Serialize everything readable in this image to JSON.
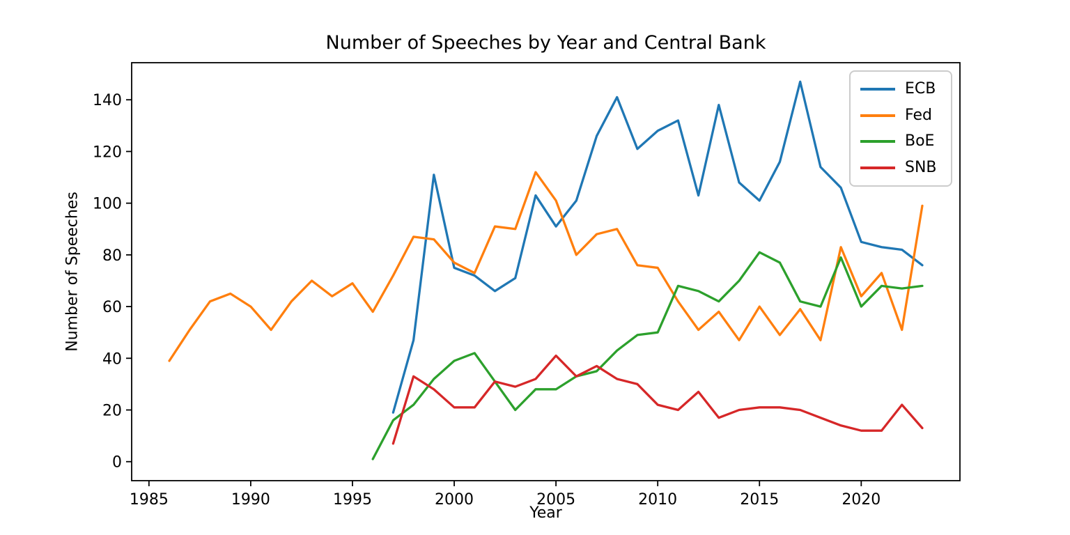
{
  "chart_data": {
    "type": "line",
    "title": "Number of Speeches by Year and Central Bank",
    "xlabel": "Year",
    "ylabel": "Number of Speeches",
    "xlim": [
      1984.15,
      2024.85
    ],
    "ylim": [
      -7.35,
      154.35
    ],
    "xticks": [
      1985,
      1990,
      1995,
      2000,
      2005,
      2010,
      2015,
      2020
    ],
    "yticks": [
      0,
      20,
      40,
      60,
      80,
      100,
      120,
      140
    ],
    "grid": false,
    "legend_position": "upper right",
    "frame_color": "#000000",
    "background_color": "#ffffff",
    "legend_edge_color": "#cccccc",
    "series": [
      {
        "name": "ECB",
        "color": "#1f77b4",
        "start_year": 1997,
        "values": [
          19,
          47,
          111,
          75,
          72,
          66,
          71,
          103,
          91,
          101,
          126,
          141,
          121,
          128,
          132,
          103,
          138,
          108,
          101,
          116,
          147,
          114,
          106,
          85,
          83,
          82,
          76
        ]
      },
      {
        "name": "Fed",
        "color": "#ff7f0e",
        "start_year": 1986,
        "values": [
          39,
          51,
          62,
          65,
          60,
          51,
          62,
          70,
          64,
          69,
          58,
          72,
          87,
          86,
          77,
          73,
          91,
          90,
          112,
          101,
          80,
          88,
          90,
          76,
          75,
          62,
          51,
          58,
          47,
          60,
          49,
          59,
          47,
          83,
          64,
          73,
          51,
          99
        ]
      },
      {
        "name": "BoE",
        "color": "#2ca02c",
        "start_year": 1996,
        "values": [
          1,
          16,
          22,
          32,
          39,
          42,
          31,
          20,
          28,
          28,
          33,
          35,
          43,
          49,
          50,
          68,
          66,
          62,
          70,
          81,
          77,
          62,
          60,
          79,
          60,
          68,
          67,
          68
        ]
      },
      {
        "name": "SNB",
        "color": "#d62728",
        "start_year": 1997,
        "values": [
          7,
          33,
          28,
          21,
          21,
          31,
          29,
          32,
          41,
          33,
          37,
          32,
          30,
          22,
          20,
          27,
          17,
          20,
          21,
          21,
          20,
          17,
          14,
          12,
          12,
          22,
          13
        ]
      }
    ]
  }
}
